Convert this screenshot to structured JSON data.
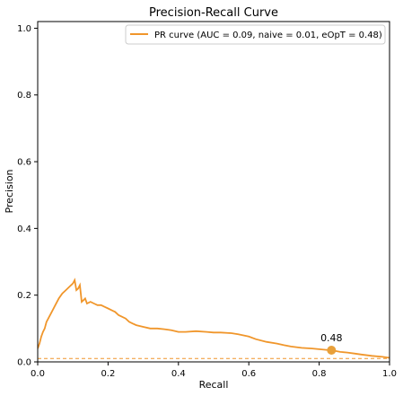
{
  "chart_data": {
    "type": "line",
    "title": "Precision-Recall Curve",
    "xlabel": "Recall",
    "ylabel": "Precision",
    "xlim": [
      0.0,
      1.0
    ],
    "ylim": [
      0.0,
      1.02
    ],
    "xticks": [
      "0.0",
      "0.2",
      "0.4",
      "0.6",
      "0.8",
      "1.0"
    ],
    "yticks": [
      "0.0",
      "0.2",
      "0.4",
      "0.6",
      "0.8",
      "1.0"
    ],
    "xtick_values": [
      0.0,
      0.2,
      0.4,
      0.6,
      0.8,
      1.0
    ],
    "ytick_values": [
      0.0,
      0.2,
      0.4,
      0.6,
      0.8,
      1.0
    ],
    "grid": false,
    "legend_position": "top-right",
    "colors": {
      "curve": "#f0962b",
      "baseline": "#f0962b",
      "marker": "#e8a03a",
      "frame": "#000000"
    },
    "series": [
      {
        "name": "PR curve (AUC = 0.09, naive = 0.01, eOpT = 0.48)",
        "x": [
          0.0,
          0.005,
          0.01,
          0.015,
          0.02,
          0.025,
          0.03,
          0.04,
          0.05,
          0.06,
          0.07,
          0.08,
          0.09,
          0.1,
          0.105,
          0.11,
          0.115,
          0.12,
          0.125,
          0.13,
          0.135,
          0.14,
          0.15,
          0.16,
          0.17,
          0.18,
          0.19,
          0.2,
          0.21,
          0.22,
          0.23,
          0.24,
          0.25,
          0.26,
          0.27,
          0.28,
          0.3,
          0.32,
          0.34,
          0.36,
          0.38,
          0.4,
          0.42,
          0.45,
          0.48,
          0.5,
          0.52,
          0.55,
          0.57,
          0.6,
          0.62,
          0.65,
          0.68,
          0.7,
          0.72,
          0.75,
          0.78,
          0.8,
          0.82,
          0.84,
          0.86,
          0.88,
          0.9,
          0.92,
          0.95,
          0.98,
          1.0
        ],
        "y": [
          0.04,
          0.055,
          0.075,
          0.09,
          0.1,
          0.12,
          0.13,
          0.15,
          0.17,
          0.19,
          0.205,
          0.215,
          0.225,
          0.235,
          0.245,
          0.215,
          0.22,
          0.23,
          0.18,
          0.185,
          0.19,
          0.175,
          0.18,
          0.175,
          0.17,
          0.17,
          0.165,
          0.16,
          0.155,
          0.15,
          0.14,
          0.135,
          0.13,
          0.12,
          0.115,
          0.11,
          0.105,
          0.1,
          0.1,
          0.098,
          0.095,
          0.09,
          0.09,
          0.092,
          0.09,
          0.088,
          0.088,
          0.086,
          0.083,
          0.076,
          0.068,
          0.06,
          0.055,
          0.05,
          0.046,
          0.042,
          0.04,
          0.038,
          0.036,
          0.034,
          0.03,
          0.028,
          0.025,
          0.022,
          0.018,
          0.015,
          0.012
        ]
      }
    ],
    "baseline": {
      "value": 0.01,
      "style": "dashed"
    },
    "annotation": {
      "text": "0.48",
      "x": 0.835,
      "y": 0.035
    }
  }
}
